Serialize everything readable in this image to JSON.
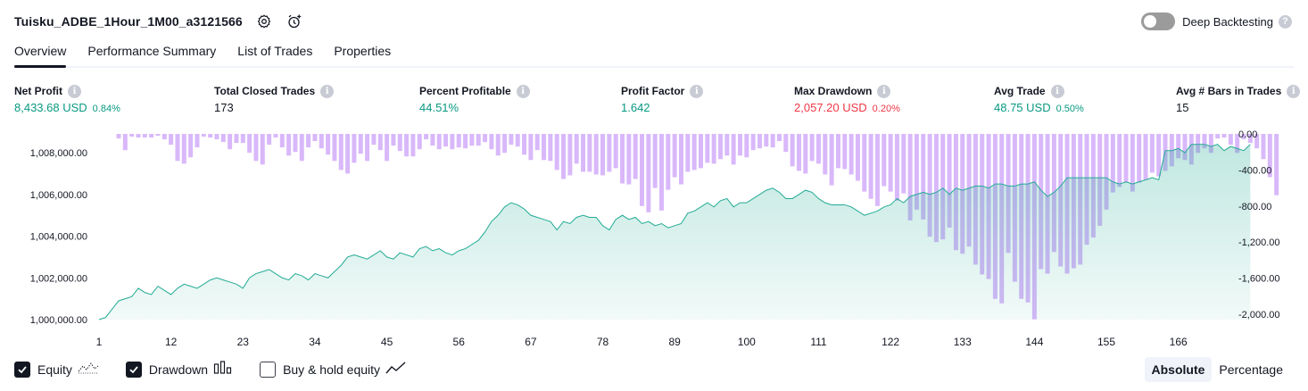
{
  "header": {
    "title": "Tuisku_ADBE_1Hour_1M00_a3121566",
    "deep_backtesting_label": "Deep Backtesting",
    "help_glyph": "?"
  },
  "tabs": [
    {
      "label": "Overview"
    },
    {
      "label": "Performance Summary"
    },
    {
      "label": "List of Trades"
    },
    {
      "label": "Properties"
    }
  ],
  "metrics": {
    "net_profit": {
      "label": "Net Profit",
      "value": "8,433.68 USD",
      "sub": "0.84%"
    },
    "total_closed_trades": {
      "label": "Total Closed Trades",
      "value": "173"
    },
    "percent_profitable": {
      "label": "Percent Profitable",
      "value": "44.51%"
    },
    "profit_factor": {
      "label": "Profit Factor",
      "value": "1.642"
    },
    "max_drawdown": {
      "label": "Max Drawdown",
      "value": "2,057.20 USD",
      "sub": "0.20%"
    },
    "avg_trade": {
      "label": "Avg Trade",
      "value": "48.75 USD",
      "sub": "0.50%"
    },
    "avg_bars": {
      "label": "Avg # Bars in Trades",
      "value": "15"
    }
  },
  "info_glyph": "i",
  "legend": {
    "equity": "Equity",
    "drawdown": "Drawdown",
    "buy_hold": "Buy & hold equity"
  },
  "scale_toggle": {
    "absolute": "Absolute",
    "percentage": "Percentage"
  },
  "colors": {
    "equity_line": "#22ab94",
    "drawdown_bar": "#d9b8fa",
    "positive": "#089981",
    "negative": "#f23645"
  },
  "chart_data": {
    "type": "area",
    "title": "",
    "series": [
      {
        "name": "Equity",
        "axis": "left",
        "values": [
          1000000,
          1000100,
          1000500,
          1000900,
          1001000,
          1001100,
          1001500,
          1001300,
          1001200,
          1001600,
          1001400,
          1001200,
          1001500,
          1001700,
          1001600,
          1001500,
          1001700,
          1001900,
          1002000,
          1001900,
          1001800,
          1001700,
          1001500,
          1002000,
          1002200,
          1002300,
          1002400,
          1002200,
          1002000,
          1001900,
          1002200,
          1002100,
          1001900,
          1002200,
          1002100,
          1002000,
          1002300,
          1002600,
          1003000,
          1003100,
          1003000,
          1002900,
          1003100,
          1003300,
          1003000,
          1002900,
          1003200,
          1003100,
          1003000,
          1003400,
          1003500,
          1003300,
          1003400,
          1003200,
          1003100,
          1003300,
          1003400,
          1003600,
          1003800,
          1004200,
          1004700,
          1005000,
          1005400,
          1005600,
          1005500,
          1005300,
          1005000,
          1004900,
          1004800,
          1004700,
          1004300,
          1004700,
          1004600,
          1004900,
          1005000,
          1004900,
          1004900,
          1004500,
          1004300,
          1004800,
          1005000,
          1004800,
          1004900,
          1004600,
          1004700,
          1004500,
          1004600,
          1004400,
          1004500,
          1004600,
          1005100,
          1005200,
          1005400,
          1005600,
          1005400,
          1005700,
          1005800,
          1005400,
          1005600,
          1005600,
          1005800,
          1006000,
          1006200,
          1006300,
          1006100,
          1005800,
          1005800,
          1006000,
          1006200,
          1006100,
          1005800,
          1005600,
          1005500,
          1005500,
          1005500,
          1005400,
          1005200,
          1005000,
          1005100,
          1005200,
          1005400,
          1005500,
          1005800,
          1005600,
          1005900,
          1006000,
          1006100,
          1006000,
          1006100,
          1006300,
          1006000,
          1006300,
          1006200,
          1006300,
          1006400,
          1006400,
          1006300,
          1006500,
          1006500,
          1006400,
          1006400,
          1006500,
          1006500,
          1006600,
          1006200,
          1005900,
          1006100,
          1006400,
          1006800,
          1006800,
          1006800,
          1006800,
          1006800,
          1006800,
          1006800,
          1006600,
          1006500,
          1006600,
          1006500,
          1006600,
          1006700,
          1006800,
          1006700,
          1008100,
          1008100,
          1008200,
          1008000,
          1008400,
          1008400,
          1008400,
          1008300,
          1008400,
          1008100,
          1008300,
          1008200,
          1008100,
          1008400
        ],
        "color": "#22ab94"
      },
      {
        "name": "Drawdown",
        "axis": "right",
        "values": [
          0,
          0,
          0,
          -50,
          -180,
          -30,
          -40,
          -40,
          -40,
          -20,
          -60,
          -120,
          -300,
          -330,
          -260,
          -150,
          -30,
          -40,
          -60,
          -90,
          -170,
          -100,
          -100,
          -210,
          -300,
          -340,
          -120,
          -40,
          -150,
          -240,
          -200,
          -300,
          -150,
          -80,
          -160,
          -230,
          -300,
          -400,
          -440,
          -320,
          -220,
          -300,
          -120,
          -180,
          -300,
          -130,
          -190,
          -250,
          -250,
          -170,
          -60,
          -130,
          -170,
          -140,
          -170,
          -150,
          -160,
          -130,
          -130,
          -90,
          -170,
          -240,
          -210,
          -120,
          -140,
          -230,
          -290,
          -180,
          -290,
          -300,
          -400,
          -500,
          -460,
          -330,
          -420,
          -420,
          -450,
          -460,
          -420,
          -380,
          -550,
          -560,
          -500,
          -800,
          -870,
          -600,
          -850,
          -620,
          -480,
          -560,
          -420,
          -400,
          -380,
          -320,
          -330,
          -280,
          -240,
          -340,
          -240,
          -260,
          -180,
          -160,
          -140,
          -150,
          -80,
          -200,
          -360,
          -410,
          -440,
          -300,
          -330,
          -450,
          -570,
          -380,
          -390,
          -450,
          -520,
          -640,
          -720,
          -800,
          -580,
          -640,
          -740,
          -660,
          -960,
          -840,
          -950,
          -1140,
          -1200,
          -1170,
          -1040,
          -1290,
          -1330,
          -1250,
          -1450,
          -1560,
          -1610,
          -1830,
          -1880,
          -1320,
          -1640,
          -1830,
          -1870,
          -2057,
          -1500,
          -1550,
          -1310,
          -1470,
          -1550,
          -1490,
          -1450,
          -1230,
          -1150,
          -1020,
          -840,
          -650,
          -590,
          -540,
          -640,
          -540,
          -510,
          -430,
          -470,
          -410,
          -360,
          -270,
          -290,
          -340,
          -210,
          -160,
          -210,
          -50,
          -40,
          -120,
          -210,
          -60,
          -100,
          -160,
          -280,
          -480,
          -680
        ],
        "color": "#d9b8fa"
      }
    ],
    "x_tick_labels": [
      "1",
      "12",
      "23",
      "34",
      "45",
      "56",
      "67",
      "78",
      "89",
      "100",
      "111",
      "122",
      "133",
      "144",
      "155",
      "166"
    ],
    "x_range": [
      1,
      173
    ],
    "left_axis": {
      "ticks": [
        "1,000,000.00",
        "1,002,000.00",
        "1,004,000.00",
        "1,006,000.00",
        "1,008,000.00"
      ],
      "range": [
        1000000,
        1008900
      ]
    },
    "right_axis": {
      "ticks": [
        "0.00",
        "-400.00",
        "-800.00",
        "-1,200.00",
        "-1,600.00",
        "-2,000.00"
      ],
      "range": [
        -2060,
        0
      ]
    }
  }
}
